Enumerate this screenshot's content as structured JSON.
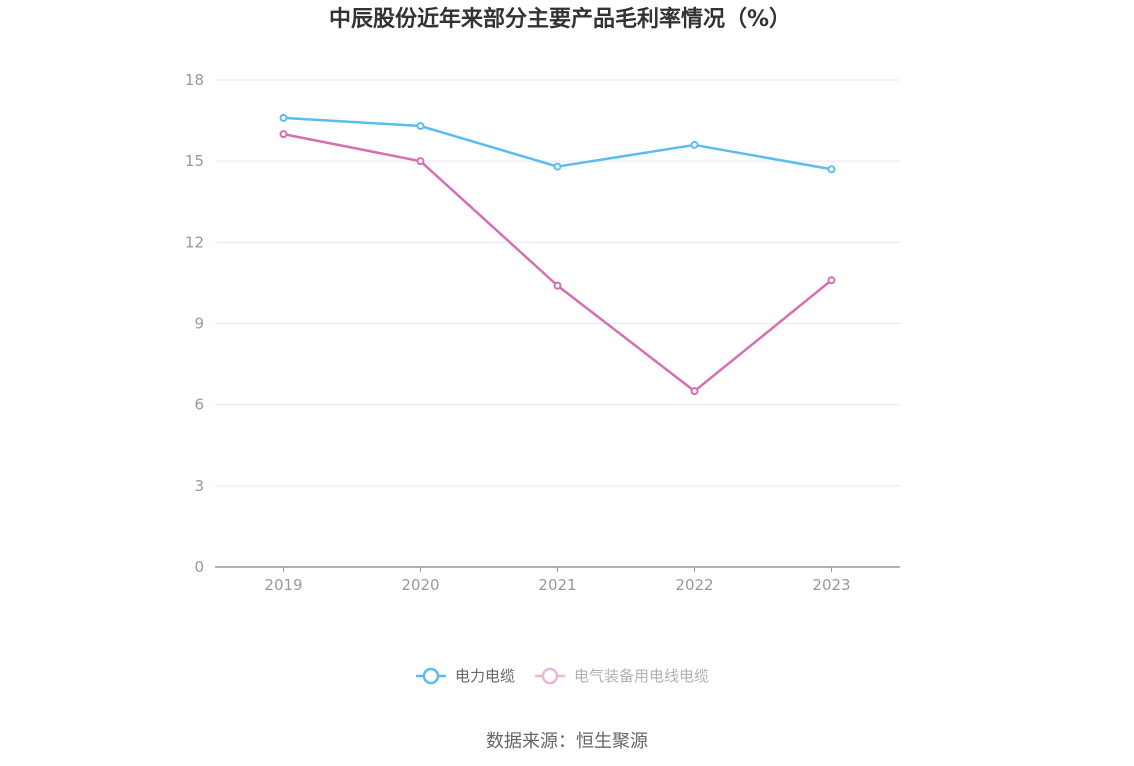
{
  "chart_data": {
    "type": "line",
    "title": "中辰股份近年来部分主要产品毛利率情况（%）",
    "categories": [
      "2019",
      "2020",
      "2021",
      "2022",
      "2023"
    ],
    "series": [
      {
        "name": "电力电缆",
        "color": "#5bbcf0",
        "values": [
          16.6,
          16.3,
          14.8,
          15.6,
          14.7
        ]
      },
      {
        "name": "电气装备用电线电缆",
        "color": "#d46fb2",
        "values": [
          16.0,
          15.0,
          10.4,
          6.5,
          10.6
        ]
      }
    ],
    "yticks": [
      0,
      3,
      6,
      9,
      12,
      15,
      18
    ],
    "ylim": [
      0,
      18
    ],
    "grid": true,
    "legend_position": "bottom-center"
  },
  "source": "数据来源：恒生聚源"
}
